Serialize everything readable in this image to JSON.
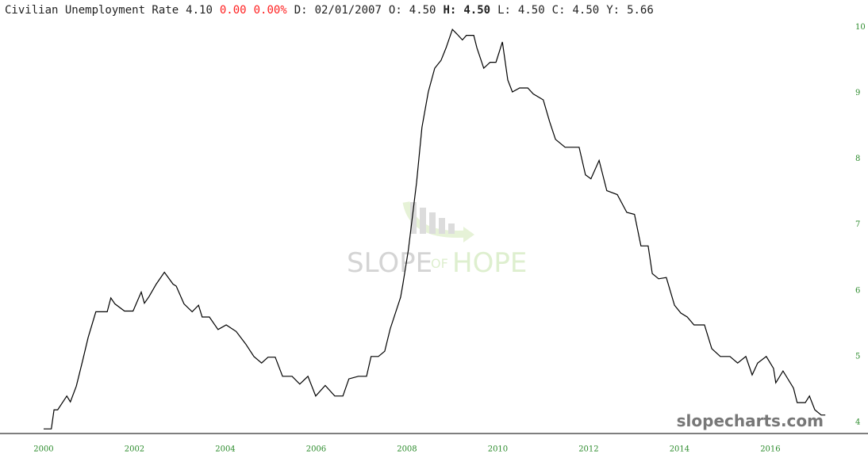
{
  "chart_data": {
    "type": "line",
    "title": "Civilian Unemployment Rate",
    "readout": [
      {
        "text": "4.10"
      },
      {
        "text": "0.00",
        "color": "#ff2020"
      },
      {
        "text": "0.00%",
        "color": "#ff2020"
      },
      {
        "text": "D:"
      },
      {
        "text": "02/01/2007"
      },
      {
        "text": "O:"
      },
      {
        "text": "4.50"
      },
      {
        "text": "H:",
        "bold": true
      },
      {
        "text": "4.50",
        "bold": true
      },
      {
        "text": "L:"
      },
      {
        "text": "4.50"
      },
      {
        "text": "C:"
      },
      {
        "text": "4.50"
      },
      {
        "text": "Y:"
      },
      {
        "text": "5.66"
      }
    ],
    "watermark": [
      "SLOPE",
      "OF",
      "HOPE"
    ],
    "credit": "slopecharts.com",
    "xlim": [
      1999.04,
      2018.15
    ],
    "ylim": [
      3.83,
      10.2
    ],
    "xticks": [
      2000,
      2002,
      2004,
      2006,
      2008,
      2010,
      2012,
      2014,
      2016
    ],
    "yticks": [
      4,
      5,
      6,
      7,
      8,
      9,
      10
    ],
    "tick_color": "#2a8a2a",
    "series": [
      {
        "name": "Civilian Unemployment Rate",
        "color": "#000000",
        "x": [
          2000.0,
          2000.17,
          2000.23,
          2000.31,
          2000.51,
          2000.59,
          2000.72,
          2000.86,
          2000.98,
          2001.15,
          2001.4,
          2001.48,
          2001.57,
          2001.78,
          2001.97,
          2002.15,
          2002.22,
          2002.32,
          2002.48,
          2002.66,
          2002.85,
          2002.92,
          2003.09,
          2003.27,
          2003.41,
          2003.49,
          2003.65,
          2003.84,
          2004.02,
          2004.24,
          2004.45,
          2004.63,
          2004.8,
          2004.94,
          2005.1,
          2005.26,
          2005.47,
          2005.64,
          2005.82,
          2005.99,
          2006.2,
          2006.41,
          2006.59,
          2006.72,
          2006.93,
          2007.11,
          2007.21,
          2007.37,
          2007.51,
          2007.63,
          2007.86,
          2007.91,
          2008.03,
          2008.21,
          2008.33,
          2008.47,
          2008.61,
          2008.75,
          2008.86,
          2009.0,
          2009.1,
          2009.22,
          2009.31,
          2009.47,
          2009.54,
          2009.69,
          2009.83,
          2009.96,
          2010.1,
          2010.22,
          2010.32,
          2010.48,
          2010.66,
          2010.78,
          2011.0,
          2011.14,
          2011.27,
          2011.48,
          2011.79,
          2011.93,
          2012.05,
          2012.23,
          2012.4,
          2012.63,
          2012.84,
          2013.01,
          2013.15,
          2013.31,
          2013.4,
          2013.54,
          2013.71,
          2013.89,
          2014.03,
          2014.17,
          2014.32,
          2014.55,
          2014.71,
          2014.9,
          2015.11,
          2015.28,
          2015.46,
          2015.6,
          2015.72,
          2015.91,
          2016.07,
          2016.12,
          2016.28,
          2016.51,
          2016.59,
          2016.77,
          2016.86,
          2016.98,
          2017.12,
          2017.21
        ],
        "values": [
          3.9,
          3.9,
          4.19,
          4.19,
          4.4,
          4.31,
          4.55,
          4.94,
          5.29,
          5.68,
          5.68,
          5.89,
          5.8,
          5.69,
          5.69,
          5.98,
          5.81,
          5.91,
          6.1,
          6.28,
          6.1,
          6.07,
          5.8,
          5.68,
          5.78,
          5.6,
          5.6,
          5.41,
          5.48,
          5.38,
          5.19,
          5.0,
          4.9,
          4.99,
          4.99,
          4.7,
          4.7,
          4.58,
          4.7,
          4.4,
          4.56,
          4.4,
          4.4,
          4.66,
          4.7,
          4.7,
          5.0,
          5.0,
          5.08,
          5.42,
          5.9,
          6.1,
          6.62,
          7.64,
          8.48,
          9.02,
          9.38,
          9.5,
          9.69,
          9.97,
          9.9,
          9.81,
          9.88,
          9.88,
          9.69,
          9.38,
          9.47,
          9.47,
          9.78,
          9.2,
          9.02,
          9.08,
          9.08,
          8.99,
          8.9,
          8.57,
          8.3,
          8.18,
          8.18,
          7.76,
          7.7,
          7.98,
          7.52,
          7.46,
          7.19,
          7.16,
          6.68,
          6.68,
          6.26,
          6.18,
          6.2,
          5.78,
          5.66,
          5.6,
          5.48,
          5.48,
          5.12,
          5.0,
          5.0,
          4.9,
          5.0,
          4.72,
          4.9,
          5.0,
          4.82,
          4.6,
          4.78,
          4.52,
          4.3,
          4.3,
          4.4,
          4.19,
          4.11,
          4.11
        ]
      }
    ]
  }
}
